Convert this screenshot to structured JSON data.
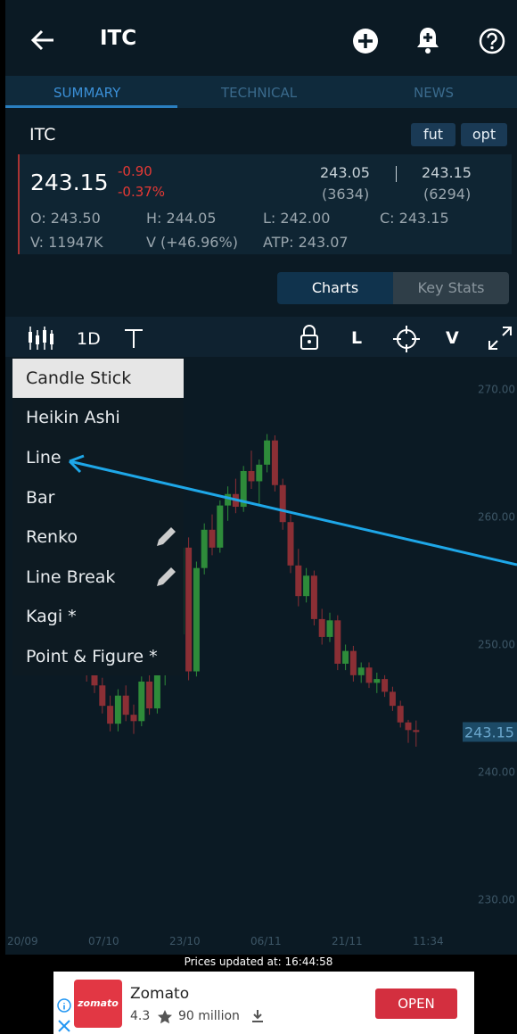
{
  "header": {
    "title": "ITC"
  },
  "tabs": [
    "SUMMARY",
    "TECHNICAL",
    "NEWS"
  ],
  "quote": {
    "symbol": "ITC",
    "buttons": [
      "fut",
      "opt"
    ],
    "ltp": "243.15",
    "change": "-0.90",
    "change_pct": "-0.37%",
    "bid": "243.05",
    "bid_qty": "(3634)",
    "ask": "243.15",
    "ask_qty": "(6294)",
    "open": "O: 243.50",
    "high": "H: 244.05",
    "low": "L: 242.00",
    "close": "C: 243.15",
    "volume": "V: 11947K",
    "volume_change": "V  (+46.96%)",
    "atp": "ATP: 243.07"
  },
  "view_toggle": [
    "Charts",
    "Key Stats"
  ],
  "toolbar": [
    "1D",
    "L",
    "V"
  ],
  "chart_types": [
    "Candle Stick",
    "Heikin Ashi",
    "Line",
    "Bar",
    "Renko",
    "Line Break",
    "Kagi *",
    "Point & Figure *"
  ],
  "chart": {
    "ylim": [
      227.8,
      272.9
    ],
    "yticks": [
      {
        "value": 270,
        "label": "270.00"
      },
      {
        "value": 260,
        "label": "260.00"
      },
      {
        "value": 250,
        "label": "250.00"
      },
      {
        "value": 240,
        "label": "240.00"
      },
      {
        "value": 230,
        "label": "230.00"
      }
    ],
    "xticks": [
      "20/09",
      "07/10",
      "23/10",
      "06/11",
      "21/11",
      "11:34"
    ],
    "last_price": {
      "value": 243.15,
      "label": "243.15"
    },
    "candles": [
      [
        249.0,
        250.5,
        248.5,
        250.2
      ],
      [
        250.2,
        251.0,
        249.5,
        249.8
      ],
      [
        249.8,
        250.6,
        249.0,
        250.4
      ],
      [
        250.4,
        251.5,
        250.0,
        251.2
      ],
      [
        251.2,
        251.8,
        250.2,
        250.6
      ],
      [
        250.6,
        251.2,
        249.4,
        249.8
      ],
      [
        249.8,
        250.9,
        249.2,
        250.5
      ],
      [
        250.5,
        251.4,
        249.6,
        249.9
      ],
      [
        249.9,
        250.3,
        248.0,
        248.4
      ],
      [
        248.4,
        249.2,
        247.1,
        247.6
      ],
      [
        247.6,
        248.5,
        246.2,
        246.8
      ],
      [
        246.8,
        247.4,
        244.6,
        245.2
      ],
      [
        245.2,
        246.0,
        243.2,
        243.8
      ],
      [
        243.8,
        246.5,
        243.2,
        246.0
      ],
      [
        246.0,
        246.8,
        244.0,
        244.5
      ],
      [
        244.5,
        245.3,
        243.0,
        244.0
      ],
      [
        244.0,
        247.5,
        243.6,
        247.1
      ],
      [
        247.1,
        247.8,
        244.5,
        245.0
      ],
      [
        245.0,
        248.0,
        244.6,
        247.6
      ],
      [
        247.6,
        249.5,
        246.8,
        249.0
      ],
      [
        249.0,
        251.2,
        248.3,
        250.8
      ],
      [
        250.8,
        258.2,
        250.2,
        257.6
      ],
      [
        257.6,
        258.4,
        247.2,
        247.9
      ],
      [
        247.9,
        256.5,
        247.5,
        256.0
      ],
      [
        256.0,
        259.5,
        255.5,
        259.0
      ],
      [
        259.0,
        260.2,
        257.0,
        257.6
      ],
      [
        257.6,
        261.3,
        257.2,
        260.9
      ],
      [
        260.9,
        262.4,
        259.7,
        261.8
      ],
      [
        261.8,
        263.0,
        260.3,
        260.8
      ],
      [
        260.8,
        264.0,
        260.4,
        263.6
      ],
      [
        263.6,
        265.2,
        262.2,
        262.8
      ],
      [
        262.8,
        264.5,
        261.0,
        264.1
      ],
      [
        264.1,
        266.5,
        263.5,
        266.0
      ],
      [
        266.0,
        266.4,
        262.0,
        262.5
      ],
      [
        262.5,
        263.0,
        259.0,
        259.6
      ],
      [
        259.6,
        260.2,
        255.6,
        256.2
      ],
      [
        256.2,
        257.5,
        253.0,
        253.8
      ],
      [
        253.8,
        256.0,
        253.3,
        255.4
      ],
      [
        255.4,
        255.8,
        251.5,
        252.0
      ],
      [
        252.0,
        252.8,
        250.0,
        250.6
      ],
      [
        250.6,
        252.5,
        250.2,
        251.9
      ],
      [
        251.9,
        252.3,
        248.0,
        248.5
      ],
      [
        248.5,
        250.0,
        248.0,
        249.5
      ],
      [
        249.5,
        249.9,
        247.1,
        247.6
      ],
      [
        247.6,
        248.6,
        247.0,
        248.2
      ],
      [
        248.2,
        248.6,
        246.6,
        247.0
      ],
      [
        247.0,
        247.8,
        246.2,
        247.3
      ],
      [
        247.3,
        247.6,
        245.9,
        246.3
      ],
      [
        246.3,
        246.7,
        244.8,
        245.2
      ],
      [
        245.2,
        245.6,
        243.5,
        243.9
      ],
      [
        243.9,
        244.1,
        242.3,
        243.3
      ],
      [
        243.3,
        244.05,
        242.0,
        243.15
      ]
    ]
  },
  "footer": {
    "updated": "Prices updated at:  16:44:58"
  },
  "ad": {
    "logo": "zomato",
    "name": "Zomato",
    "rating": "4.3",
    "downloads": "90 million",
    "button": "OPEN"
  }
}
